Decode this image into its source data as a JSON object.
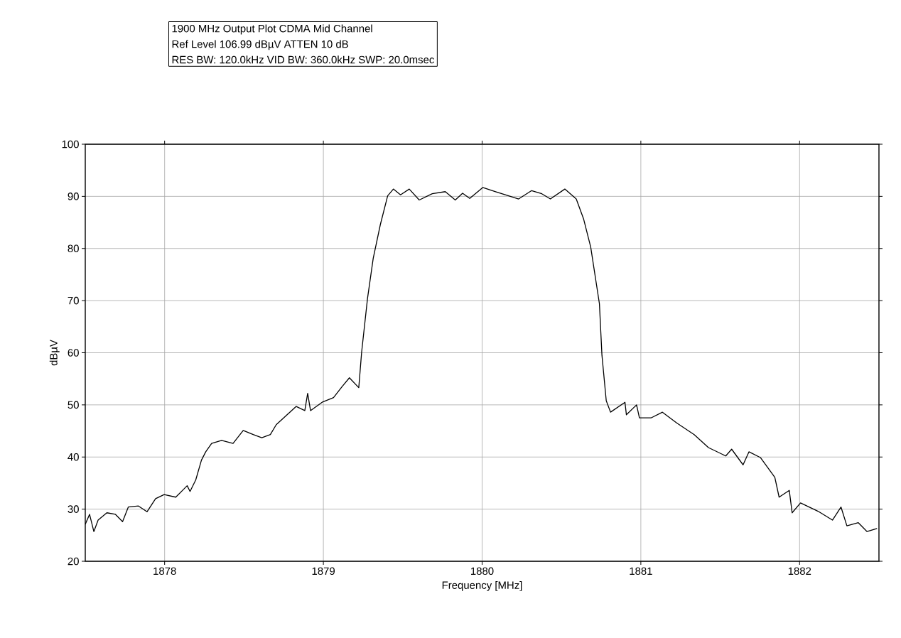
{
  "chart_data": {
    "type": "line",
    "title": "1900 MHz Output Plot CDMA Mid Channel",
    "subtitle": "Ref Level 106.99 dBµV    ATTEN 10 dB",
    "annotations": [
      "RES BW: 120.0kHz  VID BW: 360.0kHz  SWP: 20.0msec"
    ],
    "xlabel": "Frequency [MHz]",
    "ylabel": "dBµV",
    "xlim": [
      1877.5,
      1882.5
    ],
    "ylim": [
      20,
      100
    ],
    "xticks": [
      1878,
      1879,
      1880,
      1881,
      1882
    ],
    "yticks": [
      20,
      30,
      40,
      50,
      60,
      70,
      80,
      90,
      100
    ],
    "grid": true,
    "marker": "none",
    "line_style": "solid",
    "series": [
      {
        "color": "#000000",
        "x": [
          1877.5,
          1877.527,
          1877.554,
          1877.581,
          1877.636,
          1877.69,
          1877.735,
          1877.771,
          1877.835,
          1877.889,
          1877.943,
          1877.997,
          1878.07,
          1878.142,
          1878.16,
          1878.196,
          1878.232,
          1878.259,
          1878.296,
          1878.359,
          1878.431,
          1878.495,
          1878.558,
          1878.612,
          1878.666,
          1878.703,
          1878.829,
          1878.883,
          1878.901,
          1878.919,
          1878.992,
          1879.064,
          1879.118,
          1879.164,
          1879.223,
          1879.241,
          1879.278,
          1879.314,
          1879.359,
          1879.405,
          1879.441,
          1879.486,
          1879.541,
          1879.604,
          1879.686,
          1879.768,
          1879.831,
          1879.877,
          1879.922,
          1880.004,
          1880.085,
          1880.167,
          1880.23,
          1880.312,
          1880.376,
          1880.43,
          1880.521,
          1880.593,
          1880.639,
          1880.684,
          1880.739,
          1880.755,
          1880.782,
          1880.809,
          1880.9,
          1880.909,
          1880.973,
          1880.991,
          1881.064,
          1881.136,
          1881.227,
          1881.336,
          1881.426,
          1881.535,
          1881.572,
          1881.644,
          1881.681,
          1881.753,
          1881.844,
          1881.871,
          1881.935,
          1881.953,
          1882.006,
          1882.116,
          1882.207,
          1882.261,
          1882.298,
          1882.37,
          1882.425,
          1882.488
        ],
        "values": [
          27.1,
          29.0,
          25.7,
          27.9,
          29.3,
          29.0,
          27.6,
          30.4,
          30.6,
          29.5,
          32.0,
          32.8,
          32.3,
          34.5,
          33.4,
          35.6,
          39.4,
          41.0,
          42.6,
          43.2,
          42.6,
          45.1,
          44.3,
          43.7,
          44.3,
          46.2,
          49.7,
          48.9,
          52.2,
          48.9,
          50.5,
          51.4,
          53.5,
          55.2,
          53.3,
          60.1,
          70.4,
          78.1,
          84.6,
          90.1,
          91.4,
          90.3,
          91.4,
          89.3,
          90.5,
          90.9,
          89.3,
          90.6,
          89.6,
          91.7,
          90.9,
          90.1,
          89.5,
          91.1,
          90.5,
          89.5,
          91.4,
          89.5,
          85.7,
          80.3,
          69.4,
          59.5,
          50.8,
          48.6,
          50.5,
          48.1,
          50.0,
          47.5,
          47.5,
          48.6,
          46.5,
          44.3,
          41.8,
          40.2,
          41.5,
          38.5,
          41.0,
          39.9,
          36.1,
          32.3,
          33.6,
          29.3,
          31.2,
          29.6,
          27.9,
          30.4,
          26.8,
          27.4,
          25.7,
          26.3
        ]
      }
    ]
  }
}
